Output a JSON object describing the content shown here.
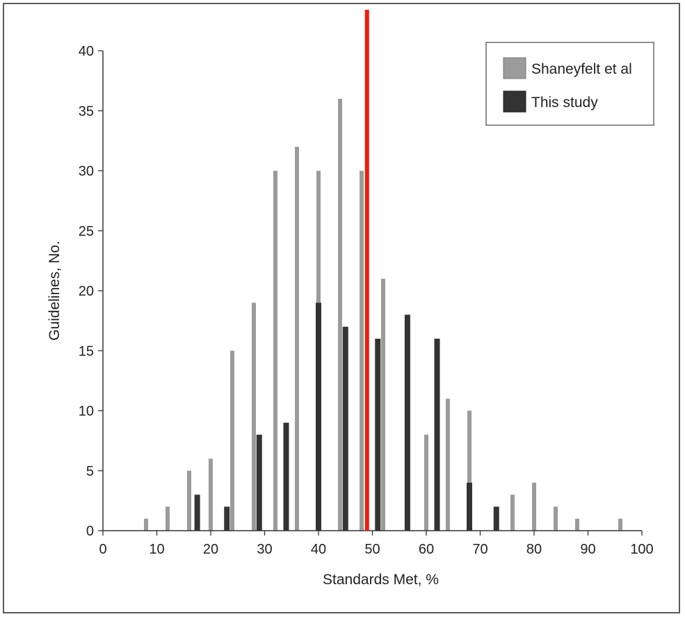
{
  "chart_data": {
    "type": "bar",
    "xlabel": "Standards Met, %",
    "ylabel": "Guidelines, No.",
    "xlim": [
      0,
      100
    ],
    "ylim": [
      0,
      40
    ],
    "x_ticks": [
      0,
      10,
      20,
      30,
      40,
      50,
      60,
      70,
      80,
      90,
      100
    ],
    "y_ticks": [
      0,
      5,
      10,
      15,
      20,
      25,
      30,
      35,
      40
    ],
    "grid": false,
    "legend_position": "top-right",
    "reference_line": {
      "x": 49,
      "color": "#ee1c0e"
    },
    "series": [
      {
        "name": "Shaneyfelt et al",
        "color": "#9b9b9b",
        "points": [
          {
            "x": 8,
            "y": 1
          },
          {
            "x": 12,
            "y": 2
          },
          {
            "x": 16,
            "y": 5
          },
          {
            "x": 20,
            "y": 6
          },
          {
            "x": 24,
            "y": 15
          },
          {
            "x": 28,
            "y": 19
          },
          {
            "x": 32,
            "y": 30
          },
          {
            "x": 36,
            "y": 32
          },
          {
            "x": 40,
            "y": 30
          },
          {
            "x": 44,
            "y": 36
          },
          {
            "x": 48,
            "y": 30
          },
          {
            "x": 52,
            "y": 21
          },
          {
            "x": 60,
            "y": 8
          },
          {
            "x": 64,
            "y": 11
          },
          {
            "x": 68,
            "y": 10
          },
          {
            "x": 76,
            "y": 3
          },
          {
            "x": 80,
            "y": 4
          },
          {
            "x": 84,
            "y": 2
          },
          {
            "x": 88,
            "y": 1
          },
          {
            "x": 96,
            "y": 1
          }
        ]
      },
      {
        "name": "This study",
        "color": "#333333",
        "points": [
          {
            "x": 17.5,
            "y": 3
          },
          {
            "x": 23,
            "y": 2
          },
          {
            "x": 29,
            "y": 8
          },
          {
            "x": 34,
            "y": 9
          },
          {
            "x": 40,
            "y": 19
          },
          {
            "x": 45,
            "y": 17
          },
          {
            "x": 51,
            "y": 16
          },
          {
            "x": 56.5,
            "y": 18
          },
          {
            "x": 62,
            "y": 16
          },
          {
            "x": 68,
            "y": 4
          },
          {
            "x": 73,
            "y": 2
          }
        ]
      }
    ]
  }
}
